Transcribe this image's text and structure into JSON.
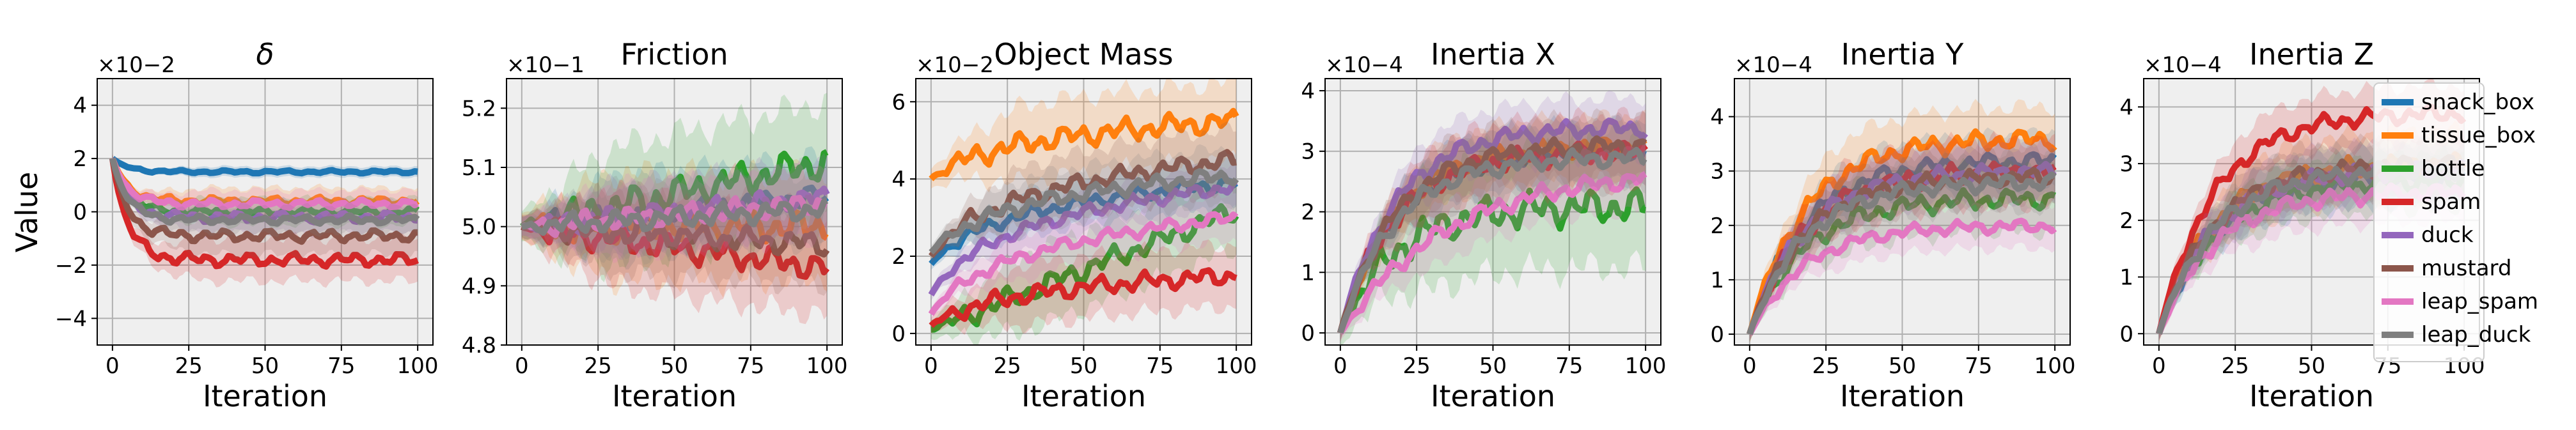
{
  "figure": {
    "y_label": "Value"
  },
  "legend": {
    "position": "right of last panel",
    "entries": [
      {
        "name": "snack_box",
        "color": "#1f77b4"
      },
      {
        "name": "tissue_box",
        "color": "#ff7f0e"
      },
      {
        "name": "bottle",
        "color": "#2ca02c"
      },
      {
        "name": "spam",
        "color": "#d62728"
      },
      {
        "name": "duck",
        "color": "#9467bd"
      },
      {
        "name": "mustard",
        "color": "#8c564b"
      },
      {
        "name": "leap_spam",
        "color": "#e377c2"
      },
      {
        "name": "leap_duck",
        "color": "#7f7f7f"
      }
    ]
  },
  "chart_data": [
    {
      "type": "line",
      "title": "δ",
      "xlabel": "Iteration",
      "ylabel": "Value",
      "multiplier": "×10−2",
      "xlim": [
        -5,
        105
      ],
      "ylim": [
        -5,
        5
      ],
      "xticks": [
        0,
        25,
        50,
        75,
        100
      ],
      "yticks": [
        -4,
        -2,
        0,
        2,
        4
      ],
      "ytick_labels": [
        "−4",
        "−2",
        "0",
        "2",
        "4"
      ],
      "grid": true,
      "series": [
        {
          "name": "snack_box",
          "start": 2.0,
          "end": 1.5,
          "shape": "fast",
          "band": 0.2
        },
        {
          "name": "tissue_box",
          "start": 2.0,
          "end": 0.4,
          "shape": "fast",
          "band": 0.5
        },
        {
          "name": "bottle",
          "start": 2.0,
          "end": 0.0,
          "shape": "fast",
          "band": 0.5
        },
        {
          "name": "spam",
          "start": 2.0,
          "end": -1.8,
          "shape": "fast",
          "band": 0.8
        },
        {
          "name": "duck",
          "start": 2.0,
          "end": -0.2,
          "shape": "fast",
          "band": 0.6
        },
        {
          "name": "mustard",
          "start": 2.0,
          "end": -0.9,
          "shape": "fast",
          "band": 0.7
        },
        {
          "name": "leap_spam",
          "start": 2.0,
          "end": 0.3,
          "shape": "fast",
          "band": 0.5
        },
        {
          "name": "leap_duck",
          "start": 2.0,
          "end": -0.3,
          "shape": "fast",
          "band": 0.5
        }
      ]
    },
    {
      "type": "line",
      "title": "Friction",
      "xlabel": "Iteration",
      "ylabel": "",
      "multiplier": "×10−1",
      "xlim": [
        -5,
        105
      ],
      "ylim": [
        4.8,
        5.25
      ],
      "xticks": [
        0,
        25,
        50,
        75,
        100
      ],
      "yticks": [
        4.8,
        4.9,
        5.0,
        5.1,
        5.2
      ],
      "ytick_labels": [
        "4.8",
        "4.9",
        "5.0",
        "5.1",
        "5.2"
      ],
      "grid": true,
      "series": [
        {
          "name": "snack_box",
          "start": 5.0,
          "end": 5.05,
          "shape": "lin",
          "band": 0.07
        },
        {
          "name": "tissue_box",
          "start": 5.0,
          "end": 5.0,
          "shape": "lin",
          "band": 0.09
        },
        {
          "name": "bottle",
          "start": 5.0,
          "end": 5.11,
          "shape": "lin",
          "band": 0.1
        },
        {
          "name": "spam",
          "start": 5.0,
          "end": 4.93,
          "shape": "lin",
          "band": 0.08
        },
        {
          "name": "duck",
          "start": 5.0,
          "end": 5.05,
          "shape": "lin",
          "band": 0.06
        },
        {
          "name": "mustard",
          "start": 5.0,
          "end": 4.97,
          "shape": "lin",
          "band": 0.07
        },
        {
          "name": "leap_spam",
          "start": 5.0,
          "end": 5.04,
          "shape": "lin",
          "band": 0.06
        },
        {
          "name": "leap_duck",
          "start": 5.0,
          "end": 5.03,
          "shape": "lin",
          "band": 0.06
        }
      ]
    },
    {
      "type": "line",
      "title": "Object Mass",
      "xlabel": "Iteration",
      "ylabel": "",
      "multiplier": "×10−2",
      "xlim": [
        -5,
        105
      ],
      "ylim": [
        -0.3,
        6.6
      ],
      "xticks": [
        0,
        25,
        50,
        75,
        100
      ],
      "yticks": [
        0,
        2,
        4,
        6
      ],
      "ytick_labels": [
        "0",
        "2",
        "4",
        "6"
      ],
      "grid": true,
      "series": [
        {
          "name": "snack_box",
          "start": 1.8,
          "end": 3.9,
          "shape": "log",
          "band": 0.6
        },
        {
          "name": "tissue_box",
          "start": 4.0,
          "end": 5.5,
          "shape": "log",
          "band": 1.0
        },
        {
          "name": "bottle",
          "start": 0.1,
          "end": 3.2,
          "shape": "lin",
          "band": 1.0
        },
        {
          "name": "spam",
          "start": 0.2,
          "end": 1.5,
          "shape": "log",
          "band": 0.8
        },
        {
          "name": "duck",
          "start": 1.0,
          "end": 3.8,
          "shape": "log",
          "band": 0.6
        },
        {
          "name": "mustard",
          "start": 2.0,
          "end": 4.5,
          "shape": "log",
          "band": 0.8
        },
        {
          "name": "leap_spam",
          "start": 0.5,
          "end": 3.0,
          "shape": "log",
          "band": 0.6
        },
        {
          "name": "leap_duck",
          "start": 2.1,
          "end": 4.1,
          "shape": "log",
          "band": 0.7
        }
      ]
    },
    {
      "type": "line",
      "title": "Inertia X",
      "xlabel": "Iteration",
      "ylabel": "",
      "multiplier": "×10−4",
      "xlim": [
        -5,
        105
      ],
      "ylim": [
        -0.2,
        4.2
      ],
      "xticks": [
        0,
        25,
        50,
        75,
        100
      ],
      "yticks": [
        0,
        1,
        2,
        3,
        4
      ],
      "ytick_labels": [
        "0",
        "1",
        "2",
        "3",
        "4"
      ],
      "grid": true,
      "series": [
        {
          "name": "snack_box",
          "start": 0,
          "end": 3.0,
          "shape": "sat",
          "band": 0.5
        },
        {
          "name": "tissue_box",
          "start": 0,
          "end": 3.1,
          "shape": "sat",
          "band": 0.5
        },
        {
          "name": "bottle",
          "start": 0,
          "end": 2.1,
          "shape": "sat",
          "band": 1.0
        },
        {
          "name": "spam",
          "start": 0,
          "end": 3.0,
          "shape": "sat",
          "band": 0.6
        },
        {
          "name": "duck",
          "start": 0,
          "end": 3.4,
          "shape": "sat",
          "band": 0.5
        },
        {
          "name": "mustard",
          "start": 0,
          "end": 3.1,
          "shape": "sat",
          "band": 0.5
        },
        {
          "name": "leap_spam",
          "start": 0,
          "end": 2.7,
          "shape": "slow",
          "band": 0.5
        },
        {
          "name": "leap_duck",
          "start": 0,
          "end": 2.9,
          "shape": "sat",
          "band": 0.5
        }
      ]
    },
    {
      "type": "line",
      "title": "Inertia Y",
      "xlabel": "Iteration",
      "ylabel": "",
      "multiplier": "×10−4",
      "xlim": [
        -5,
        105
      ],
      "ylim": [
        -0.2,
        4.7
      ],
      "xticks": [
        0,
        25,
        50,
        75,
        100
      ],
      "yticks": [
        0,
        1,
        2,
        3,
        4
      ],
      "ytick_labels": [
        "0",
        "1",
        "2",
        "3",
        "4"
      ],
      "grid": true,
      "series": [
        {
          "name": "snack_box",
          "start": 0,
          "end": 3.2,
          "shape": "sat",
          "band": 0.5
        },
        {
          "name": "tissue_box",
          "start": 0,
          "end": 3.6,
          "shape": "sat",
          "band": 0.6
        },
        {
          "name": "bottle",
          "start": 0,
          "end": 2.5,
          "shape": "sat",
          "band": 0.6
        },
        {
          "name": "spam",
          "start": 0,
          "end": 3.0,
          "shape": "sat",
          "band": 0.6
        },
        {
          "name": "duck",
          "start": 0,
          "end": 3.0,
          "shape": "sat",
          "band": 0.5
        },
        {
          "name": "mustard",
          "start": 0,
          "end": 2.9,
          "shape": "sat",
          "band": 0.5
        },
        {
          "name": "leap_spam",
          "start": 0,
          "end": 2.0,
          "shape": "sat",
          "band": 0.4
        },
        {
          "name": "leap_duck",
          "start": 0,
          "end": 2.8,
          "shape": "sat",
          "band": 0.5
        }
      ]
    },
    {
      "type": "line",
      "title": "Inertia Z",
      "xlabel": "Iteration",
      "ylabel": "",
      "multiplier": "×10−4",
      "xlim": [
        -5,
        105
      ],
      "ylim": [
        -0.2,
        4.5
      ],
      "xticks": [
        0,
        25,
        50,
        75,
        100
      ],
      "yticks": [
        0,
        1,
        2,
        3,
        4
      ],
      "ytick_labels": [
        "0",
        "1",
        "2",
        "3",
        "4"
      ],
      "grid": true,
      "series": [
        {
          "name": "snack_box",
          "start": 0,
          "end": 2.8,
          "shape": "sat",
          "band": 0.5
        },
        {
          "name": "tissue_box",
          "start": 0,
          "end": 3.0,
          "shape": "sat",
          "band": 0.6
        },
        {
          "name": "bottle",
          "start": 0,
          "end": 2.7,
          "shape": "sat",
          "band": 0.5
        },
        {
          "name": "spam",
          "start": 0,
          "end": 3.9,
          "shape": "sat",
          "band": 0.5
        },
        {
          "name": "duck",
          "start": 0,
          "end": 2.9,
          "shape": "sat",
          "band": 0.5
        },
        {
          "name": "mustard",
          "start": 0,
          "end": 3.0,
          "shape": "sat",
          "band": 0.5
        },
        {
          "name": "leap_spam",
          "start": 0,
          "end": 2.5,
          "shape": "sat",
          "band": 0.5
        },
        {
          "name": "leap_duck",
          "start": 0,
          "end": 2.9,
          "shape": "sat",
          "band": 0.5
        }
      ]
    }
  ]
}
